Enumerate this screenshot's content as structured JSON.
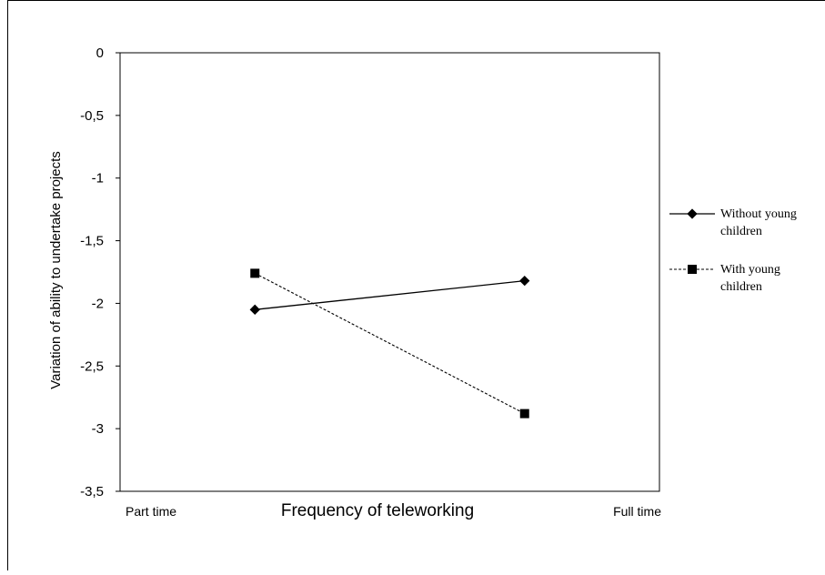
{
  "chart_data": {
    "type": "line",
    "x": [
      0.5,
      1.5
    ],
    "series": [
      {
        "name": "Without young children",
        "values": [
          -2.05,
          -1.82
        ],
        "line_style": "solid",
        "marker": "diamond"
      },
      {
        "name": "With young children",
        "values": [
          -1.76,
          -2.88
        ],
        "line_style": "dashed",
        "marker": "square"
      }
    ],
    "xlim": [
      0,
      2
    ],
    "ylim": [
      -3.5,
      0
    ],
    "y_ticks": [
      0,
      -0.5,
      -1,
      -1.5,
      -2,
      -2.5,
      -3,
      -3.5
    ],
    "y_tick_labels": [
      "0",
      "-0,5",
      "-1",
      "-1,5",
      "-2",
      "-2,5",
      "-3",
      "-3,5"
    ],
    "x_start_label": "Part time",
    "x_end_label": "Full time",
    "xlabel": "Frequency of teleworking",
    "ylabel": "Variation of ability to undertake projects",
    "legend": {
      "placement": "right",
      "entries": [
        {
          "line1": "Without young",
          "line2": "children"
        },
        {
          "line1": "With young",
          "line2": "children"
        }
      ]
    },
    "grid": false,
    "colors": {
      "line": "#000000",
      "frame": "#000000",
      "background": "#ffffff"
    }
  }
}
